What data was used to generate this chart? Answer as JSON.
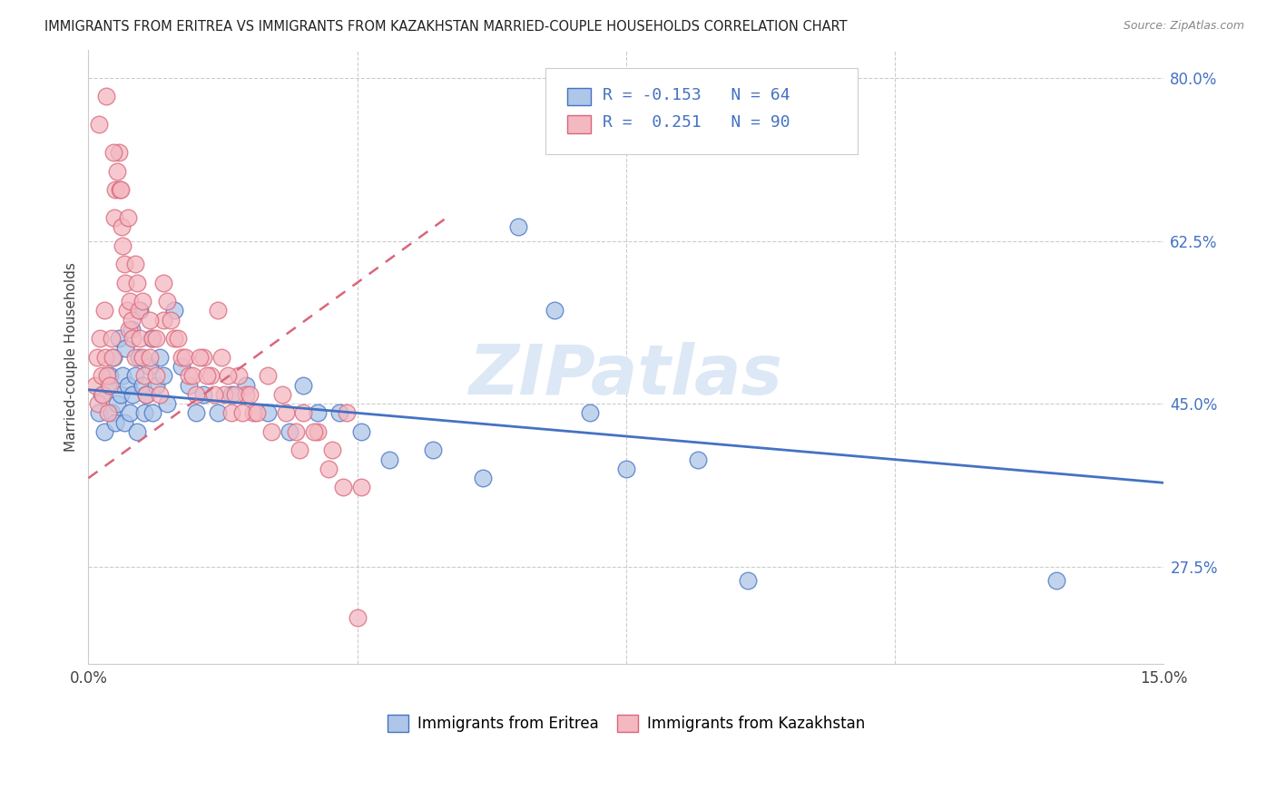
{
  "title": "IMMIGRANTS FROM ERITREA VS IMMIGRANTS FROM KAZAKHSTAN MARRIED-COUPLE HOUSEHOLDS CORRELATION CHART",
  "source": "Source: ZipAtlas.com",
  "legend_label1": "Immigrants from Eritrea",
  "legend_label2": "Immigrants from Kazakhstan",
  "color_eritrea_fill": "#aec6e8",
  "color_eritrea_edge": "#4472c4",
  "color_eritrea_line": "#4472c4",
  "color_kazakhstan_fill": "#f4b8c1",
  "color_kazakhstan_edge": "#d9667a",
  "color_kazakhstan_line": "#d9667a",
  "background": "#ffffff",
  "watermark": "ZIPatlas",
  "watermark_color": "#dce8f5",
  "eritrea_x": [
    0.15,
    0.18,
    0.22,
    0.28,
    0.3,
    0.32,
    0.35,
    0.38,
    0.4,
    0.42,
    0.45,
    0.48,
    0.5,
    0.52,
    0.55,
    0.58,
    0.6,
    0.62,
    0.65,
    0.68,
    0.7,
    0.72,
    0.75,
    0.78,
    0.8,
    0.85,
    0.88,
    0.9,
    0.95,
    1.0,
    1.05,
    1.1,
    1.2,
    1.3,
    1.4,
    1.5,
    1.6,
    1.8,
    2.0,
    2.2,
    2.5,
    2.8,
    3.0,
    3.2,
    3.5,
    3.8,
    4.2,
    4.8,
    5.5,
    6.0,
    6.5,
    7.0,
    7.5,
    8.5,
    9.2,
    13.5
  ],
  "eritrea_y": [
    44.0,
    46.0,
    42.0,
    47.0,
    48.0,
    44.0,
    50.0,
    43.0,
    45.0,
    52.0,
    46.0,
    48.0,
    43.0,
    51.0,
    47.0,
    44.0,
    53.0,
    46.0,
    48.0,
    42.0,
    50.0,
    55.0,
    47.0,
    44.0,
    46.0,
    49.0,
    52.0,
    44.0,
    47.0,
    50.0,
    48.0,
    45.0,
    55.0,
    49.0,
    47.0,
    44.0,
    46.0,
    44.0,
    46.0,
    47.0,
    44.0,
    42.0,
    47.0,
    44.0,
    44.0,
    42.0,
    39.0,
    40.0,
    37.0,
    64.0,
    55.0,
    44.0,
    38.0,
    39.0,
    26.0,
    26.0
  ],
  "kazakhstan_x": [
    0.1,
    0.12,
    0.14,
    0.16,
    0.18,
    0.2,
    0.22,
    0.24,
    0.26,
    0.28,
    0.3,
    0.32,
    0.34,
    0.36,
    0.38,
    0.4,
    0.42,
    0.44,
    0.46,
    0.48,
    0.5,
    0.52,
    0.54,
    0.56,
    0.58,
    0.6,
    0.62,
    0.65,
    0.68,
    0.7,
    0.72,
    0.75,
    0.78,
    0.8,
    0.85,
    0.9,
    0.95,
    1.0,
    1.05,
    1.1,
    1.2,
    1.3,
    1.4,
    1.5,
    1.6,
    1.7,
    1.8,
    1.9,
    2.0,
    2.1,
    2.2,
    2.3,
    2.5,
    2.7,
    2.9,
    3.0,
    3.2,
    3.4,
    3.6,
    3.8,
    0.15,
    0.25,
    0.35,
    0.45,
    0.55,
    0.65,
    0.75,
    0.85,
    0.95,
    1.05,
    1.15,
    1.25,
    1.35,
    1.45,
    1.55,
    1.65,
    1.75,
    1.85,
    1.95,
    2.05,
    2.15,
    2.25,
    2.35,
    2.55,
    2.75,
    2.95,
    3.15,
    3.35,
    3.55,
    3.75
  ],
  "kazakhstan_y": [
    47.0,
    50.0,
    45.0,
    52.0,
    48.0,
    46.0,
    55.0,
    50.0,
    48.0,
    44.0,
    47.0,
    52.0,
    50.0,
    65.0,
    68.0,
    70.0,
    72.0,
    68.0,
    64.0,
    62.0,
    60.0,
    58.0,
    55.0,
    53.0,
    56.0,
    54.0,
    52.0,
    50.0,
    58.0,
    55.0,
    52.0,
    50.0,
    48.0,
    46.0,
    50.0,
    52.0,
    48.0,
    46.0,
    54.0,
    56.0,
    52.0,
    50.0,
    48.0,
    46.0,
    50.0,
    48.0,
    55.0,
    46.0,
    44.0,
    48.0,
    46.0,
    44.0,
    48.0,
    46.0,
    42.0,
    44.0,
    42.0,
    40.0,
    44.0,
    36.0,
    75.0,
    78.0,
    72.0,
    68.0,
    65.0,
    60.0,
    56.0,
    54.0,
    52.0,
    58.0,
    54.0,
    52.0,
    50.0,
    48.0,
    50.0,
    48.0,
    46.0,
    50.0,
    48.0,
    46.0,
    44.0,
    46.0,
    44.0,
    42.0,
    44.0,
    40.0,
    42.0,
    38.0,
    36.0,
    22.0
  ]
}
